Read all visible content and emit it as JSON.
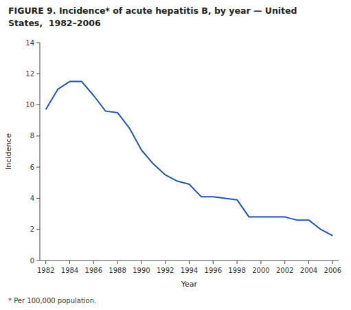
{
  "chart_data": {
    "type": "line",
    "title": "FIGURE 9. Incidence* of acute hepatitis B, by year — United\nStates,  1982–2006",
    "x_label": "Year",
    "y_label": "Incidence",
    "footnote": "* Per 100,000 population.",
    "x": [
      1982,
      1983,
      1984,
      1985,
      1986,
      1987,
      1988,
      1989,
      1990,
      1991,
      1992,
      1993,
      1994,
      1995,
      1996,
      1997,
      1998,
      1999,
      2000,
      2001,
      2002,
      2003,
      2004,
      2005,
      2006
    ],
    "values": [
      9.7,
      11.0,
      11.5,
      11.5,
      10.6,
      9.6,
      9.5,
      8.5,
      7.1,
      6.2,
      5.5,
      5.1,
      4.9,
      4.1,
      4.1,
      4.0,
      3.9,
      2.8,
      2.8,
      2.8,
      2.8,
      2.6,
      2.6,
      2.0,
      1.6
    ],
    "color": "#2255aa",
    "xlim": [
      1981.5,
      2006.5
    ],
    "ylim": [
      0,
      14
    ],
    "xticks": [
      1982,
      1984,
      1986,
      1988,
      1990,
      1992,
      1994,
      1996,
      1998,
      2000,
      2002,
      2004,
      2006
    ],
    "yticks": [
      0,
      2,
      4,
      6,
      8,
      10,
      12,
      14
    ],
    "grid": false
  }
}
